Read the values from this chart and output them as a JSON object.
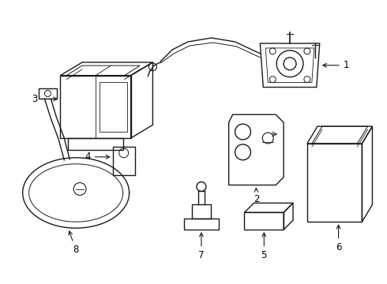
{
  "background_color": "#ffffff",
  "line_color": "#1a1a1a",
  "line_width": 1.0,
  "label_fontsize": 8.5
}
